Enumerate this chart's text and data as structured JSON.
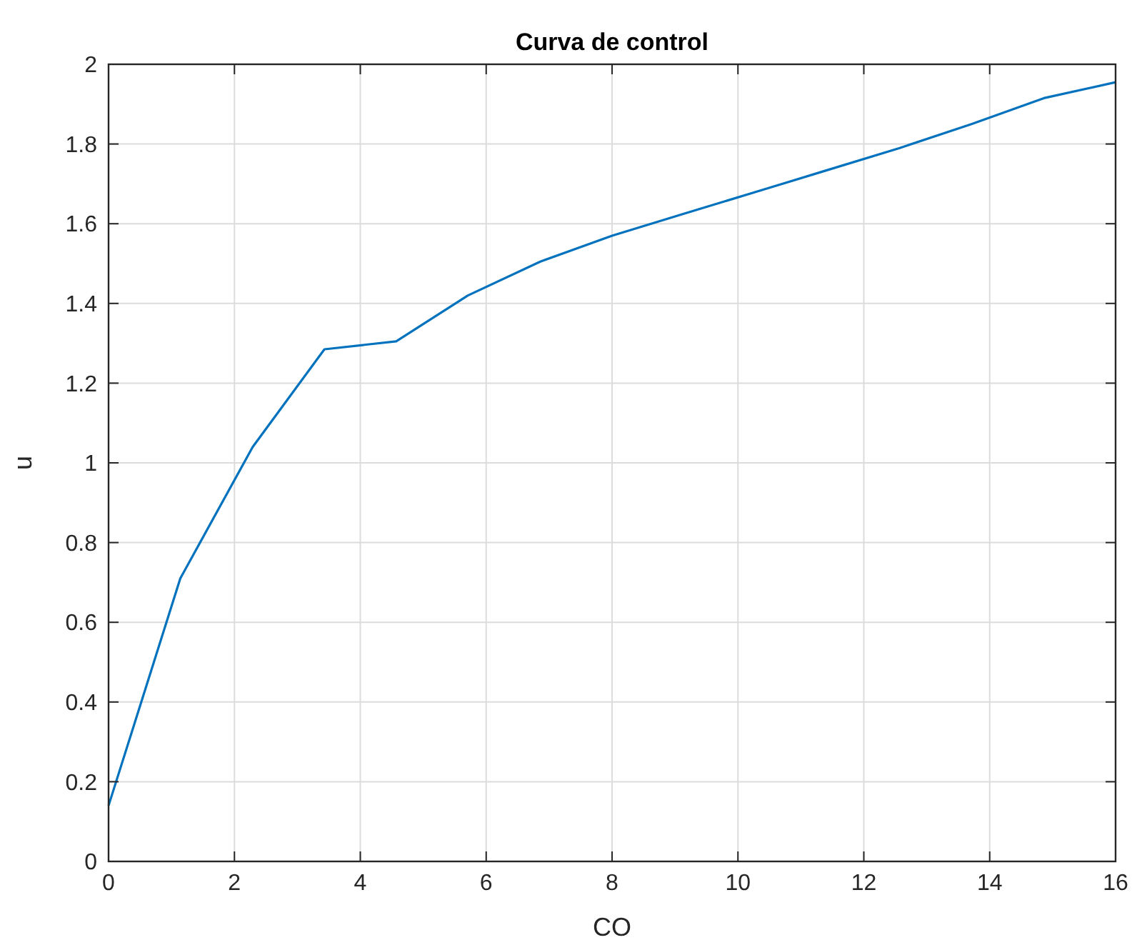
{
  "chart_data": {
    "type": "line",
    "title": "Curva de control",
    "xlabel": "CO",
    "ylabel": "u",
    "x": [
      0,
      1.14,
      2.29,
      3.43,
      4.57,
      5.71,
      6.86,
      8,
      9.14,
      10.29,
      11.43,
      12.57,
      13.71,
      14.86,
      16
    ],
    "series": [
      {
        "color": "#0072bd",
        "values": [
          0.14,
          0.71,
          1.04,
          1.285,
          1.305,
          1.42,
          1.505,
          1.57,
          1.625,
          1.68,
          1.735,
          1.79,
          1.85,
          1.915,
          1.955
        ]
      }
    ],
    "xlim": [
      0,
      16
    ],
    "xticks": [
      0,
      2,
      4,
      6,
      8,
      10,
      12,
      14,
      16
    ],
    "ylim": [
      0,
      2
    ],
    "yticks": [
      0,
      0.2,
      0.4,
      0.6,
      0.8,
      1,
      1.2,
      1.4,
      1.6,
      1.8,
      2
    ],
    "grid": true,
    "line_style": "solid"
  }
}
